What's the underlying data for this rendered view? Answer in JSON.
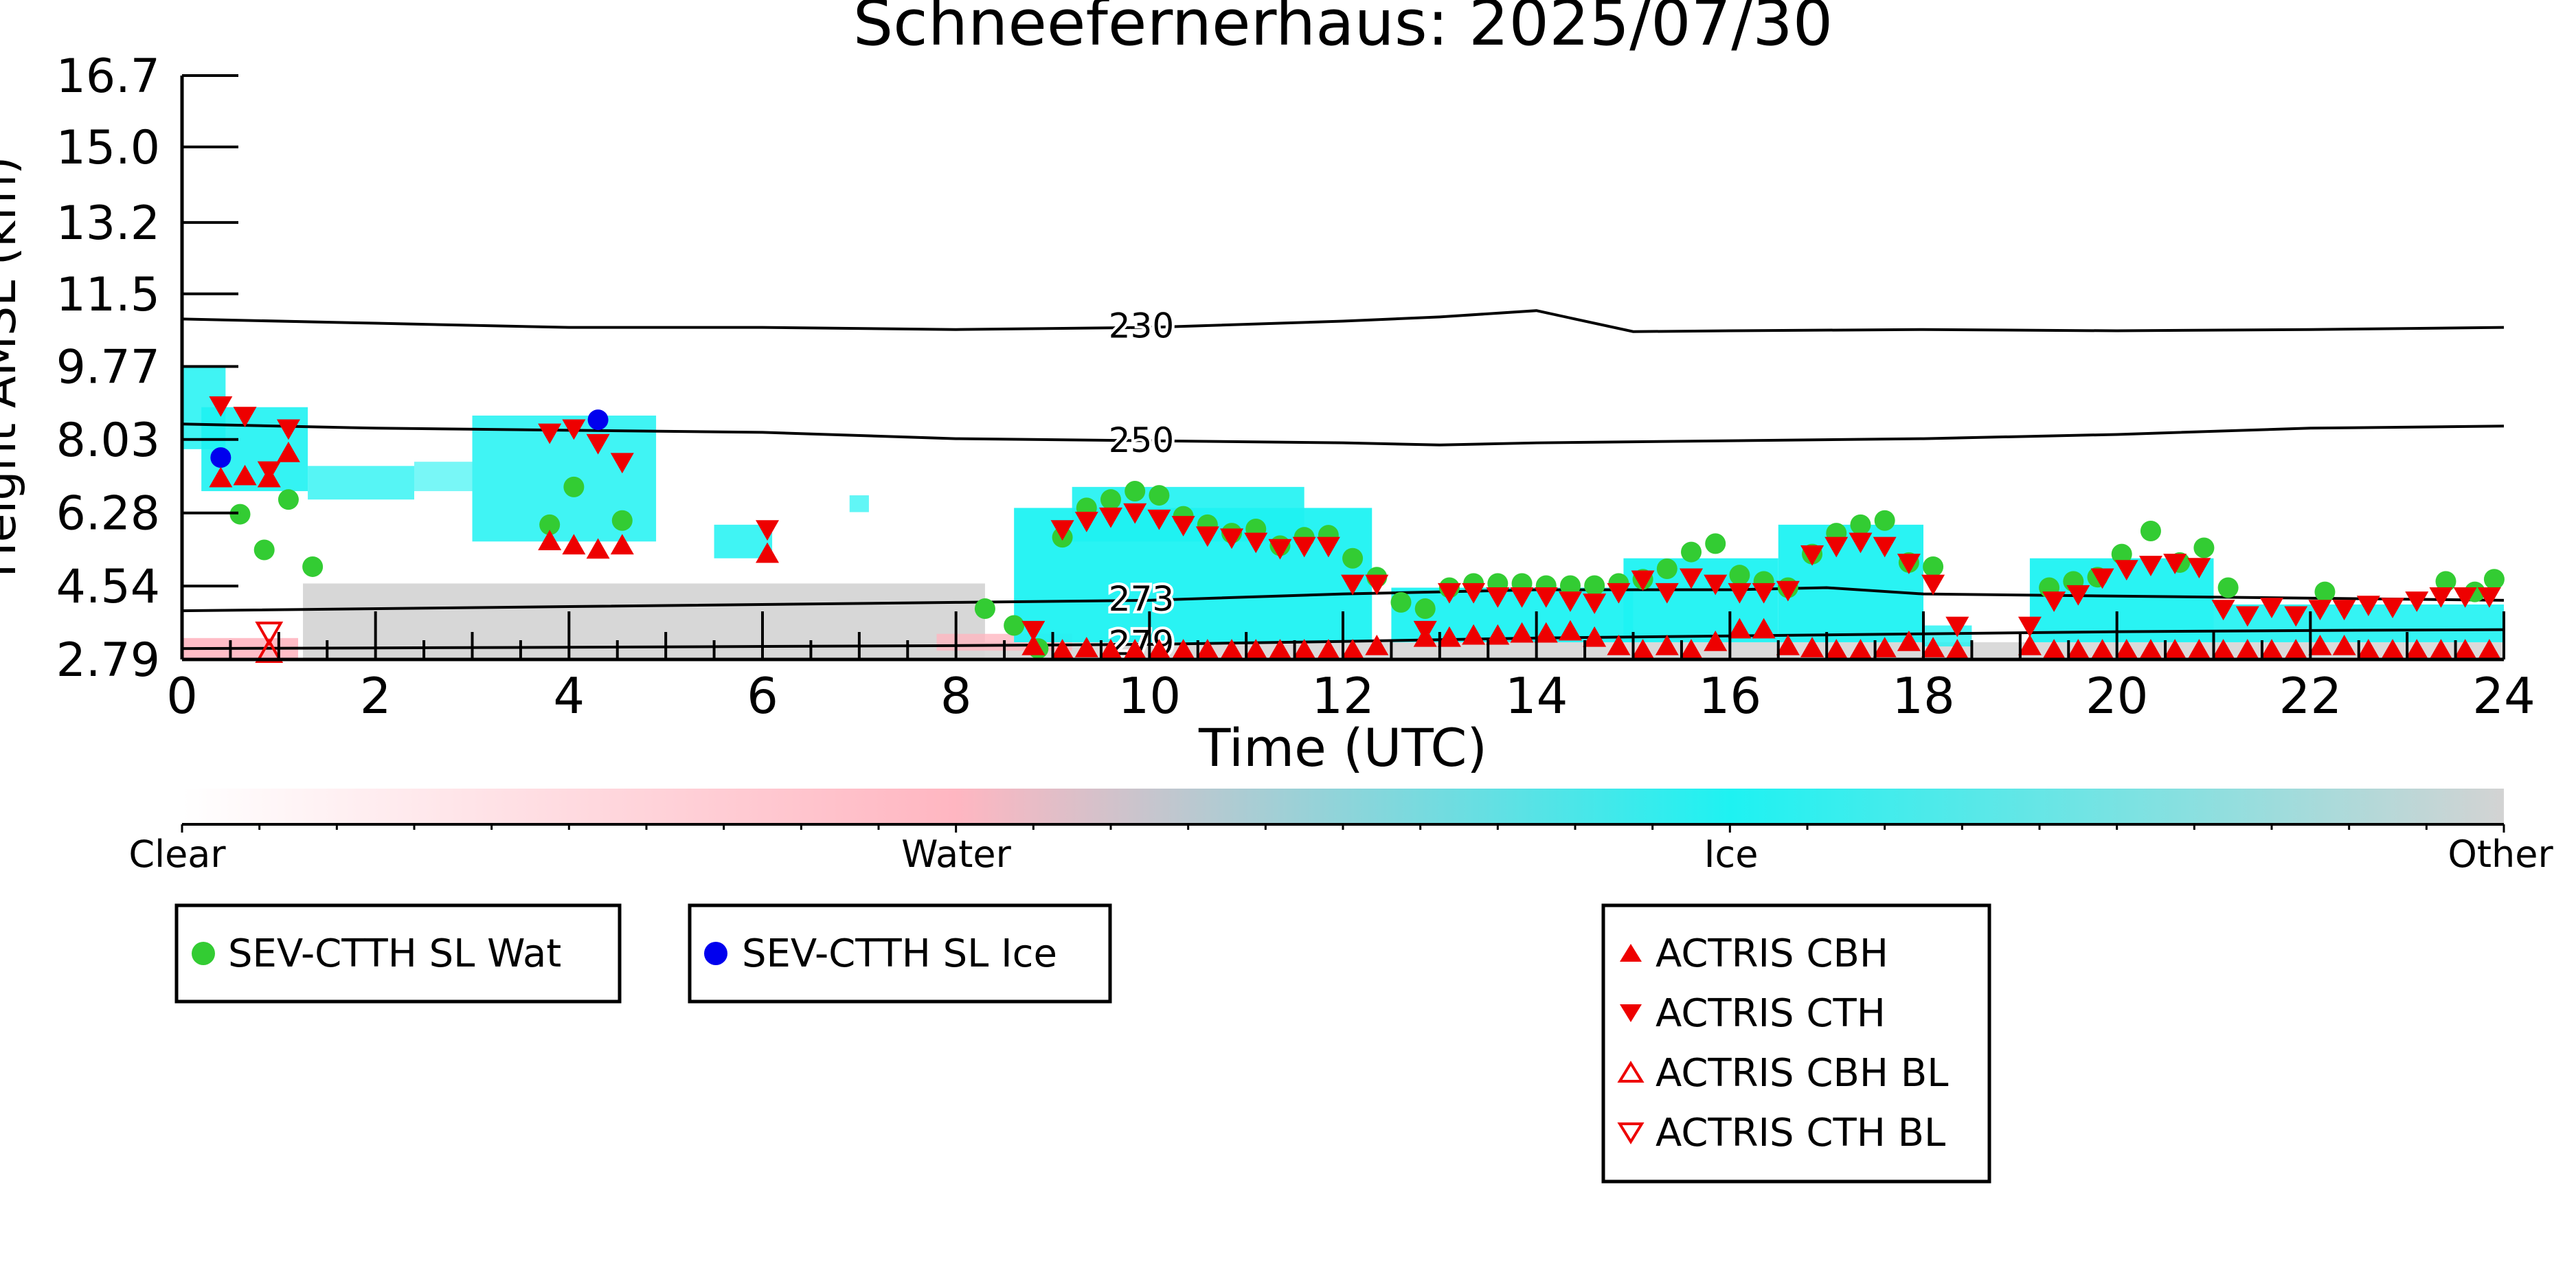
{
  "chart_data": {
    "type": "scatter",
    "title": "Schneefernerhaus: 2025/07/30",
    "xlabel": "Time (UTC)",
    "ylabel": "Height AMSL (km)",
    "xlim": [
      0,
      24
    ],
    "ylim": [
      2.79,
      16.7
    ],
    "x_ticks": [
      "0",
      "2",
      "4",
      "6",
      "8",
      "10",
      "12",
      "14",
      "16",
      "18",
      "20",
      "22",
      "24"
    ],
    "y_ticks": [
      "2.79",
      "4.54",
      "6.28",
      "8.03",
      "9.77",
      "11.5",
      "13.2",
      "15.0",
      "16.7"
    ],
    "colorbar": {
      "labels": [
        "Clear",
        "Water",
        "Ice",
        "Other"
      ],
      "colors": [
        "#ffffff",
        "#ffb6c1",
        "#1ef2f2",
        "#d3d3d3"
      ]
    },
    "contours": [
      {
        "label": "230",
        "points": [
          [
            0,
            10.9
          ],
          [
            2,
            10.8
          ],
          [
            4,
            10.7
          ],
          [
            6,
            10.7
          ],
          [
            8,
            10.65
          ],
          [
            10,
            10.7
          ],
          [
            12,
            10.85
          ],
          [
            13,
            10.95
          ],
          [
            14,
            11.1
          ],
          [
            15,
            10.6
          ],
          [
            16,
            10.62
          ],
          [
            18,
            10.65
          ],
          [
            20,
            10.62
          ],
          [
            22,
            10.65
          ],
          [
            24,
            10.7
          ]
        ]
      },
      {
        "label": "250",
        "points": [
          [
            0,
            8.4
          ],
          [
            2,
            8.3
          ],
          [
            4,
            8.25
          ],
          [
            6,
            8.2
          ],
          [
            8,
            8.05
          ],
          [
            10,
            8.0
          ],
          [
            12,
            7.95
          ],
          [
            13,
            7.9
          ],
          [
            14,
            7.95
          ],
          [
            16,
            8.0
          ],
          [
            18,
            8.05
          ],
          [
            20,
            8.15
          ],
          [
            22,
            8.3
          ],
          [
            24,
            8.35
          ]
        ]
      },
      {
        "label": "273",
        "points": [
          [
            0,
            3.95
          ],
          [
            4,
            4.05
          ],
          [
            8,
            4.15
          ],
          [
            10,
            4.2
          ],
          [
            12,
            4.35
          ],
          [
            14,
            4.45
          ],
          [
            16,
            4.45
          ],
          [
            17,
            4.5
          ],
          [
            18,
            4.35
          ],
          [
            20,
            4.3
          ],
          [
            22,
            4.25
          ],
          [
            24,
            4.2
          ]
        ]
      },
      {
        "label": "279",
        "points": [
          [
            0,
            3.05
          ],
          [
            4,
            3.08
          ],
          [
            8,
            3.12
          ],
          [
            10,
            3.15
          ],
          [
            12,
            3.22
          ],
          [
            14,
            3.3
          ],
          [
            16,
            3.35
          ],
          [
            18,
            3.4
          ],
          [
            20,
            3.45
          ],
          [
            22,
            3.48
          ],
          [
            24,
            3.5
          ]
        ]
      }
    ],
    "series": [
      {
        "name": "SEV-CTTH SL Wat",
        "color": "#33cc33",
        "marker": "circle",
        "x": [
          0.6,
          0.85,
          1.1,
          1.35,
          3.8,
          4.05,
          4.55,
          8.3,
          8.6,
          8.85,
          9.1,
          9.35,
          9.6,
          9.85,
          10.1,
          10.35,
          10.6,
          10.85,
          11.1,
          11.35,
          11.6,
          11.85,
          12.1,
          12.35,
          12.6,
          12.85,
          13.1,
          13.35,
          13.6,
          13.85,
          14.1,
          14.35,
          14.6,
          14.85,
          15.1,
          15.35,
          15.6,
          15.85,
          16.1,
          16.35,
          16.6,
          16.85,
          17.1,
          17.35,
          17.6,
          17.85,
          18.1,
          19.3,
          19.55,
          19.8,
          20.05,
          20.35,
          20.65,
          20.9,
          21.15,
          22.15,
          23.4,
          23.7,
          23.9
        ],
        "y": [
          6.25,
          5.4,
          6.6,
          5.0,
          6.0,
          6.9,
          6.1,
          4.0,
          3.6,
          3.05,
          5.7,
          6.4,
          6.6,
          6.8,
          6.7,
          6.2,
          6.0,
          5.8,
          5.9,
          5.5,
          5.7,
          5.75,
          5.2,
          4.75,
          4.15,
          4.0,
          4.5,
          4.6,
          4.6,
          4.6,
          4.55,
          4.55,
          4.55,
          4.6,
          4.7,
          4.95,
          5.35,
          5.55,
          4.8,
          4.65,
          4.5,
          5.3,
          5.8,
          6.0,
          6.1,
          5.1,
          5.0,
          4.5,
          4.65,
          4.75,
          5.3,
          5.85,
          5.1,
          5.45,
          4.5,
          4.4,
          4.65,
          4.4,
          4.7
        ]
      },
      {
        "name": "SEV-CTTH SL Ice",
        "color": "#0000ee",
        "marker": "circle",
        "x": [
          0.4,
          4.3
        ],
        "y": [
          7.6,
          8.5
        ]
      },
      {
        "name": "ACTRIS CBH",
        "color": "#ee0000",
        "marker": "triangle-up",
        "x": [
          0.4,
          0.65,
          0.9,
          1.1,
          3.8,
          4.05,
          4.3,
          4.55,
          6.05,
          8.8,
          9.1,
          9.35,
          9.6,
          9.85,
          10.1,
          10.35,
          10.6,
          10.85,
          11.1,
          11.35,
          11.6,
          11.85,
          12.1,
          12.35,
          12.85,
          13.1,
          13.35,
          13.6,
          13.85,
          14.1,
          14.35,
          14.6,
          14.85,
          15.1,
          15.35,
          15.6,
          15.85,
          16.1,
          16.35,
          16.6,
          16.85,
          17.1,
          17.35,
          17.6,
          17.85,
          18.1,
          18.35,
          19.1,
          19.35,
          19.6,
          19.85,
          20.1,
          20.35,
          20.6,
          20.85,
          21.1,
          21.35,
          21.6,
          21.85,
          22.1,
          22.35,
          22.6,
          22.85,
          23.1,
          23.35,
          23.6,
          23.85
        ],
        "y": [
          7.1,
          7.15,
          7.1,
          7.7,
          5.6,
          5.5,
          5.4,
          5.5,
          5.3,
          3.1,
          3.0,
          3.05,
          3.0,
          3.0,
          3.0,
          3.0,
          3.0,
          3.0,
          3.0,
          3.0,
          3.0,
          3.0,
          3.0,
          3.1,
          3.3,
          3.3,
          3.35,
          3.35,
          3.4,
          3.4,
          3.45,
          3.3,
          3.1,
          3.0,
          3.1,
          3.0,
          3.2,
          3.5,
          3.5,
          3.1,
          3.05,
          3.0,
          3.0,
          3.05,
          3.2,
          3.05,
          3.0,
          3.1,
          3.0,
          3.0,
          3.0,
          3.0,
          3.0,
          3.0,
          3.0,
          3.0,
          3.0,
          3.0,
          3.0,
          3.1,
          3.1,
          3.0,
          3.0,
          3.0,
          3.0,
          3.0,
          3.0
        ]
      },
      {
        "name": "ACTRIS CTH",
        "color": "#ee0000",
        "marker": "triangle-down",
        "x": [
          0.4,
          0.65,
          0.9,
          1.1,
          3.8,
          4.05,
          4.3,
          4.55,
          6.05,
          8.8,
          9.1,
          9.35,
          9.6,
          9.85,
          10.1,
          10.35,
          10.6,
          10.85,
          11.1,
          11.35,
          11.6,
          11.85,
          12.1,
          12.35,
          12.85,
          13.1,
          13.35,
          13.6,
          13.85,
          14.1,
          14.35,
          14.6,
          14.85,
          15.1,
          15.35,
          15.6,
          15.85,
          16.1,
          16.35,
          16.6,
          16.85,
          17.1,
          17.35,
          17.6,
          17.85,
          18.1,
          18.35,
          19.1,
          19.35,
          19.6,
          19.85,
          20.1,
          20.35,
          20.6,
          20.85,
          21.1,
          21.35,
          21.6,
          21.85,
          22.1,
          22.35,
          22.6,
          22.85,
          23.1,
          23.35,
          23.6,
          23.85
        ],
        "y": [
          8.85,
          8.6,
          7.3,
          8.3,
          8.2,
          8.3,
          7.95,
          7.5,
          5.9,
          3.5,
          5.9,
          6.1,
          6.2,
          6.3,
          6.15,
          6.0,
          5.75,
          5.7,
          5.6,
          5.45,
          5.5,
          5.5,
          4.6,
          4.6,
          3.5,
          4.4,
          4.4,
          4.3,
          4.3,
          4.3,
          4.2,
          4.15,
          4.4,
          4.7,
          4.4,
          4.75,
          4.6,
          4.4,
          4.4,
          4.45,
          5.3,
          5.5,
          5.6,
          5.5,
          5.1,
          4.6,
          3.6,
          3.6,
          4.2,
          4.35,
          4.75,
          4.95,
          5.05,
          5.1,
          5.0,
          4.0,
          3.85,
          4.05,
          3.85,
          4.0,
          4.0,
          4.1,
          4.05,
          4.2,
          4.3,
          4.3,
          4.3
        ]
      },
      {
        "name": "ACTRIS CBH BL",
        "color": "#ee0000",
        "marker": "triangle-up-open",
        "x": [
          0.9
        ],
        "y": [
          2.95
        ]
      },
      {
        "name": "ACTRIS CTH BL",
        "color": "#ee0000",
        "marker": "triangle-down-open",
        "x": [
          0.9
        ],
        "y": [
          3.45
        ]
      }
    ],
    "grid": false,
    "legend_placement": "bottom"
  }
}
